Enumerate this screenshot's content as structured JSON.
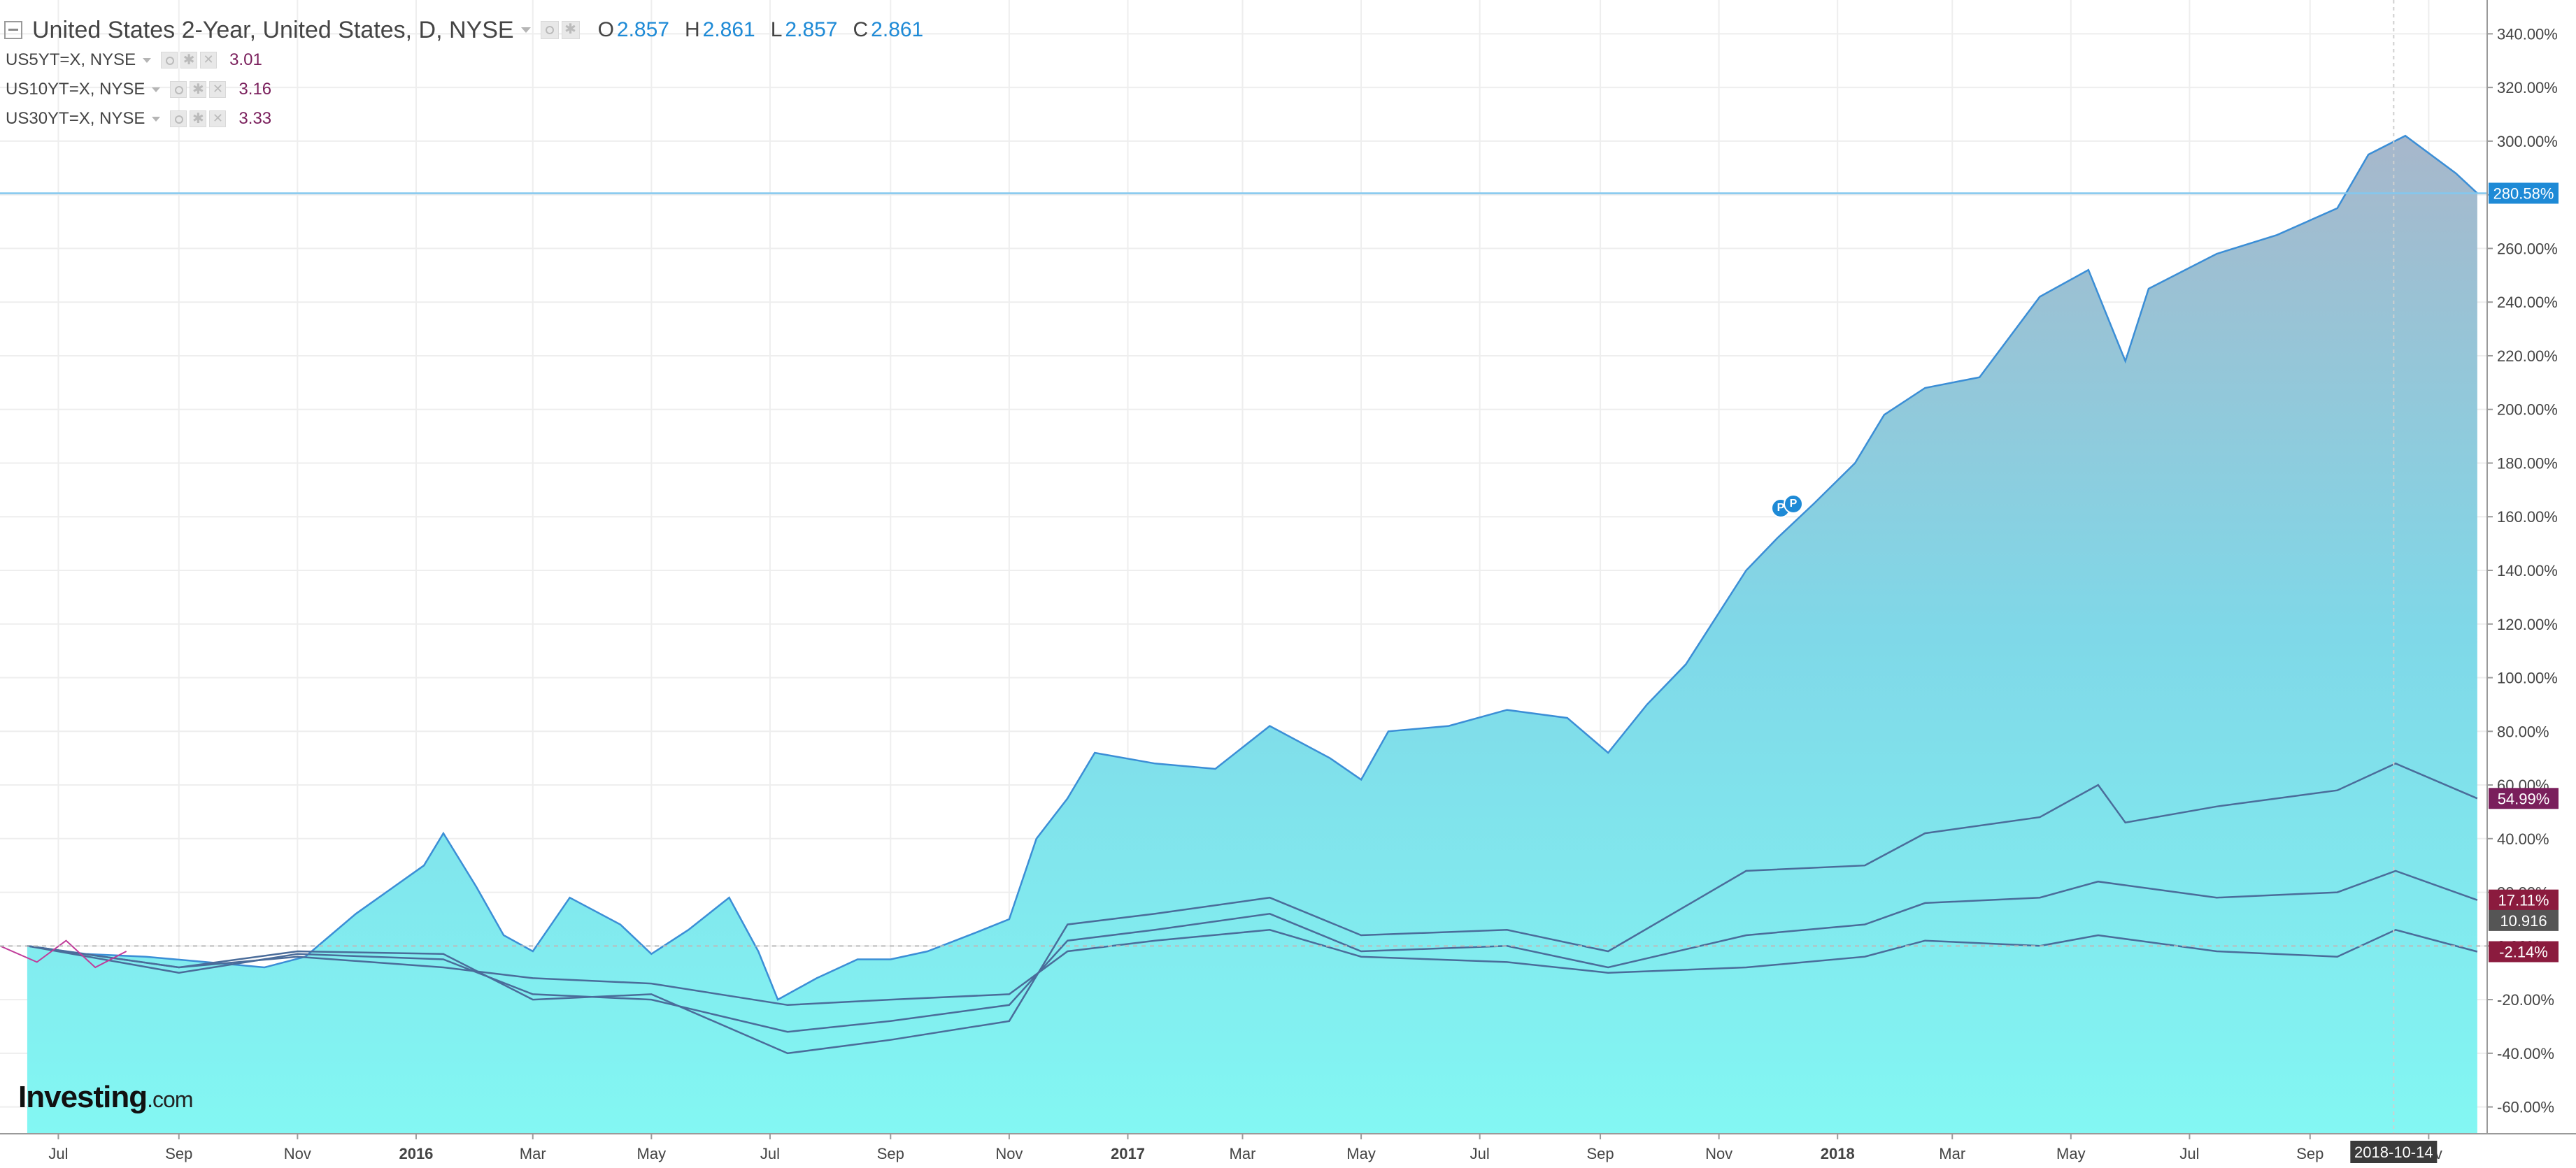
{
  "legend": {
    "main": {
      "title": "United States 2-Year, United States, D, NYSE",
      "o_label": "O",
      "o_value": "2.857",
      "h_label": "H",
      "h_value": "2.861",
      "l_label": "L",
      "l_value": "2.857",
      "c_label": "C",
      "c_value": "2.861"
    },
    "compare": [
      {
        "name": "US5YT=X, NYSE",
        "value": "3.01"
      },
      {
        "name": "US10YT=X, NYSE",
        "value": "3.16"
      },
      {
        "name": "US30YT=X, NYSE",
        "value": "3.33"
      }
    ]
  },
  "logo": {
    "text": "Investing",
    "suffix": ".com"
  },
  "markers": {
    "flag_1": "P",
    "flag_2": "P"
  },
  "colors": {
    "area_top": "#a7b7cb",
    "area_mid": "#7fd8e8",
    "area_bottom": "#83f7f3",
    "area_line": "#3b8ed6",
    "compare_line": "#4a6c9a",
    "magenta_line": "#c03c9a",
    "axis_badge_blue": "#1e8ad6",
    "axis_badge_purple": "#7a1f5c",
    "axis_badge_crimson": "#8b1b3e",
    "axis_badge_gray": "#555555",
    "date_badge": "#3b3b3b",
    "hline": "#83c8ef"
  },
  "chart_data": {
    "type": "area",
    "scale": "percent change",
    "x_ticks": [
      {
        "label": "Jul",
        "date": "2015-07-01"
      },
      {
        "label": "Sep",
        "date": "2015-09-01"
      },
      {
        "label": "Nov",
        "date": "2015-11-01"
      },
      {
        "label": "2016",
        "date": "2016-01-01",
        "bold": true
      },
      {
        "label": "Mar",
        "date": "2016-03-01"
      },
      {
        "label": "May",
        "date": "2016-05-01"
      },
      {
        "label": "Jul",
        "date": "2016-07-01"
      },
      {
        "label": "Sep",
        "date": "2016-09-01"
      },
      {
        "label": "Nov",
        "date": "2016-11-01"
      },
      {
        "label": "2017",
        "date": "2017-01-01",
        "bold": true
      },
      {
        "label": "Mar",
        "date": "2017-03-01"
      },
      {
        "label": "May",
        "date": "2017-05-01"
      },
      {
        "label": "Jul",
        "date": "2017-07-01"
      },
      {
        "label": "Sep",
        "date": "2017-09-01"
      },
      {
        "label": "Nov",
        "date": "2017-11-01"
      },
      {
        "label": "2018",
        "date": "2018-01-01",
        "bold": true
      },
      {
        "label": "Mar",
        "date": "2018-03-01"
      },
      {
        "label": "May",
        "date": "2018-05-01"
      },
      {
        "label": "Jul",
        "date": "2018-07-01"
      },
      {
        "label": "Sep",
        "date": "2018-09-01"
      },
      {
        "label": "Nov",
        "date": "2018-11-01"
      }
    ],
    "y_ticks": [
      "340.00%",
      "320.00%",
      "300.00%",
      "280.00%",
      "260.00%",
      "240.00%",
      "220.00%",
      "200.00%",
      "180.00%",
      "160.00%",
      "140.00%",
      "120.00%",
      "100.00%",
      "80.00%",
      "60.00%",
      "40.00%",
      "20.00%",
      "0.00%",
      "-20.00%",
      "-40.00%",
      "-60.00%"
    ],
    "ylim": [
      -70,
      350
    ],
    "grid": true,
    "date_badge": "2018-10-14",
    "badges": [
      {
        "value": "280.58%",
        "y": 280.58,
        "color": "blue"
      },
      {
        "value": "54.99%",
        "y": 54.99,
        "color": "purple"
      },
      {
        "value": "17.11%",
        "y": 17.11,
        "color": "crimson"
      },
      {
        "value": "10.916",
        "y": 9.5,
        "color": "gray"
      },
      {
        "value": "-2.14%",
        "y": -2.14,
        "color": "crimson"
      }
    ],
    "series": [
      {
        "name": "United States 2-Year",
        "style": "area",
        "points": [
          [
            "2015-06-15",
            0
          ],
          [
            "2015-07-15",
            -3
          ],
          [
            "2015-08-15",
            -4
          ],
          [
            "2015-09-15",
            -6
          ],
          [
            "2015-10-15",
            -8
          ],
          [
            "2015-11-05",
            -4
          ],
          [
            "2015-12-01",
            12
          ],
          [
            "2016-01-05",
            30
          ],
          [
            "2016-01-15",
            42
          ],
          [
            "2016-02-01",
            22
          ],
          [
            "2016-02-15",
            4
          ],
          [
            "2016-03-01",
            -2
          ],
          [
            "2016-03-20",
            18
          ],
          [
            "2016-04-15",
            8
          ],
          [
            "2016-05-01",
            -3
          ],
          [
            "2016-05-20",
            6
          ],
          [
            "2016-06-10",
            18
          ],
          [
            "2016-06-25",
            -2
          ],
          [
            "2016-07-05",
            -20
          ],
          [
            "2016-07-25",
            -12
          ],
          [
            "2016-08-15",
            -5
          ],
          [
            "2016-09-01",
            -5
          ],
          [
            "2016-09-20",
            -2
          ],
          [
            "2016-10-15",
            5
          ],
          [
            "2016-11-01",
            10
          ],
          [
            "2016-11-15",
            40
          ],
          [
            "2016-12-01",
            55
          ],
          [
            "2016-12-15",
            72
          ],
          [
            "2017-01-15",
            68
          ],
          [
            "2017-02-15",
            66
          ],
          [
            "2017-03-15",
            82
          ],
          [
            "2017-04-15",
            70
          ],
          [
            "2017-05-01",
            62
          ],
          [
            "2017-05-15",
            80
          ],
          [
            "2017-06-15",
            82
          ],
          [
            "2017-07-15",
            88
          ],
          [
            "2017-08-15",
            85
          ],
          [
            "2017-09-05",
            72
          ],
          [
            "2017-09-25",
            90
          ],
          [
            "2017-10-15",
            105
          ],
          [
            "2017-11-15",
            140
          ],
          [
            "2017-12-01",
            152
          ],
          [
            "2017-12-20",
            165
          ],
          [
            "2018-01-10",
            180
          ],
          [
            "2018-01-25",
            198
          ],
          [
            "2018-02-15",
            208
          ],
          [
            "2018-03-15",
            212
          ],
          [
            "2018-04-15",
            242
          ],
          [
            "2018-05-10",
            252
          ],
          [
            "2018-05-29",
            218
          ],
          [
            "2018-06-10",
            245
          ],
          [
            "2018-07-15",
            258
          ],
          [
            "2018-08-15",
            265
          ],
          [
            "2018-09-15",
            275
          ],
          [
            "2018-10-01",
            295
          ],
          [
            "2018-10-20",
            302
          ],
          [
            "2018-11-15",
            288
          ],
          [
            "2018-11-26",
            280.58
          ]
        ]
      },
      {
        "name": "US5YT=X, NYSE",
        "style": "line",
        "points": [
          [
            "2015-06-15",
            0
          ],
          [
            "2015-09-01",
            -8
          ],
          [
            "2015-11-01",
            -2
          ],
          [
            "2016-01-15",
            -3
          ],
          [
            "2016-03-01",
            -20
          ],
          [
            "2016-05-01",
            -18
          ],
          [
            "2016-07-10",
            -40
          ],
          [
            "2016-09-01",
            -35
          ],
          [
            "2016-11-01",
            -28
          ],
          [
            "2016-12-01",
            8
          ],
          [
            "2017-01-15",
            12
          ],
          [
            "2017-03-15",
            18
          ],
          [
            "2017-05-01",
            4
          ],
          [
            "2017-07-15",
            6
          ],
          [
            "2017-09-05",
            -2
          ],
          [
            "2017-11-15",
            28
          ],
          [
            "2018-01-15",
            30
          ],
          [
            "2018-02-15",
            42
          ],
          [
            "2018-04-15",
            48
          ],
          [
            "2018-05-15",
            60
          ],
          [
            "2018-05-29",
            46
          ],
          [
            "2018-07-15",
            52
          ],
          [
            "2018-09-15",
            58
          ],
          [
            "2018-10-15",
            68
          ],
          [
            "2018-11-26",
            54.99
          ]
        ]
      },
      {
        "name": "US10YT=X, NYSE",
        "style": "line",
        "points": [
          [
            "2015-06-15",
            0
          ],
          [
            "2015-09-01",
            -10
          ],
          [
            "2015-11-01",
            -3
          ],
          [
            "2016-01-15",
            -5
          ],
          [
            "2016-03-01",
            -18
          ],
          [
            "2016-05-01",
            -20
          ],
          [
            "2016-07-10",
            -32
          ],
          [
            "2016-09-01",
            -28
          ],
          [
            "2016-11-01",
            -22
          ],
          [
            "2016-12-01",
            2
          ],
          [
            "2017-01-15",
            6
          ],
          [
            "2017-03-15",
            12
          ],
          [
            "2017-05-01",
            -2
          ],
          [
            "2017-07-15",
            0
          ],
          [
            "2017-09-05",
            -8
          ],
          [
            "2017-11-15",
            4
          ],
          [
            "2018-01-15",
            8
          ],
          [
            "2018-02-15",
            16
          ],
          [
            "2018-04-15",
            18
          ],
          [
            "2018-05-15",
            24
          ],
          [
            "2018-07-15",
            18
          ],
          [
            "2018-09-15",
            20
          ],
          [
            "2018-10-15",
            28
          ],
          [
            "2018-11-26",
            17.11
          ]
        ]
      },
      {
        "name": "US30YT=X, NYSE",
        "style": "line",
        "points": [
          [
            "2015-06-15",
            0
          ],
          [
            "2015-09-01",
            -8
          ],
          [
            "2015-11-01",
            -4
          ],
          [
            "2016-01-15",
            -8
          ],
          [
            "2016-03-01",
            -12
          ],
          [
            "2016-05-01",
            -14
          ],
          [
            "2016-07-10",
            -22
          ],
          [
            "2016-09-01",
            -20
          ],
          [
            "2016-11-01",
            -18
          ],
          [
            "2016-12-01",
            -2
          ],
          [
            "2017-01-15",
            2
          ],
          [
            "2017-03-15",
            6
          ],
          [
            "2017-05-01",
            -4
          ],
          [
            "2017-07-15",
            -6
          ],
          [
            "2017-09-05",
            -10
          ],
          [
            "2017-11-15",
            -8
          ],
          [
            "2018-01-15",
            -4
          ],
          [
            "2018-02-15",
            2
          ],
          [
            "2018-04-15",
            0
          ],
          [
            "2018-05-15",
            4
          ],
          [
            "2018-07-15",
            -2
          ],
          [
            "2018-09-15",
            -4
          ],
          [
            "2018-10-15",
            6
          ],
          [
            "2018-11-26",
            -2.14
          ]
        ]
      }
    ]
  }
}
